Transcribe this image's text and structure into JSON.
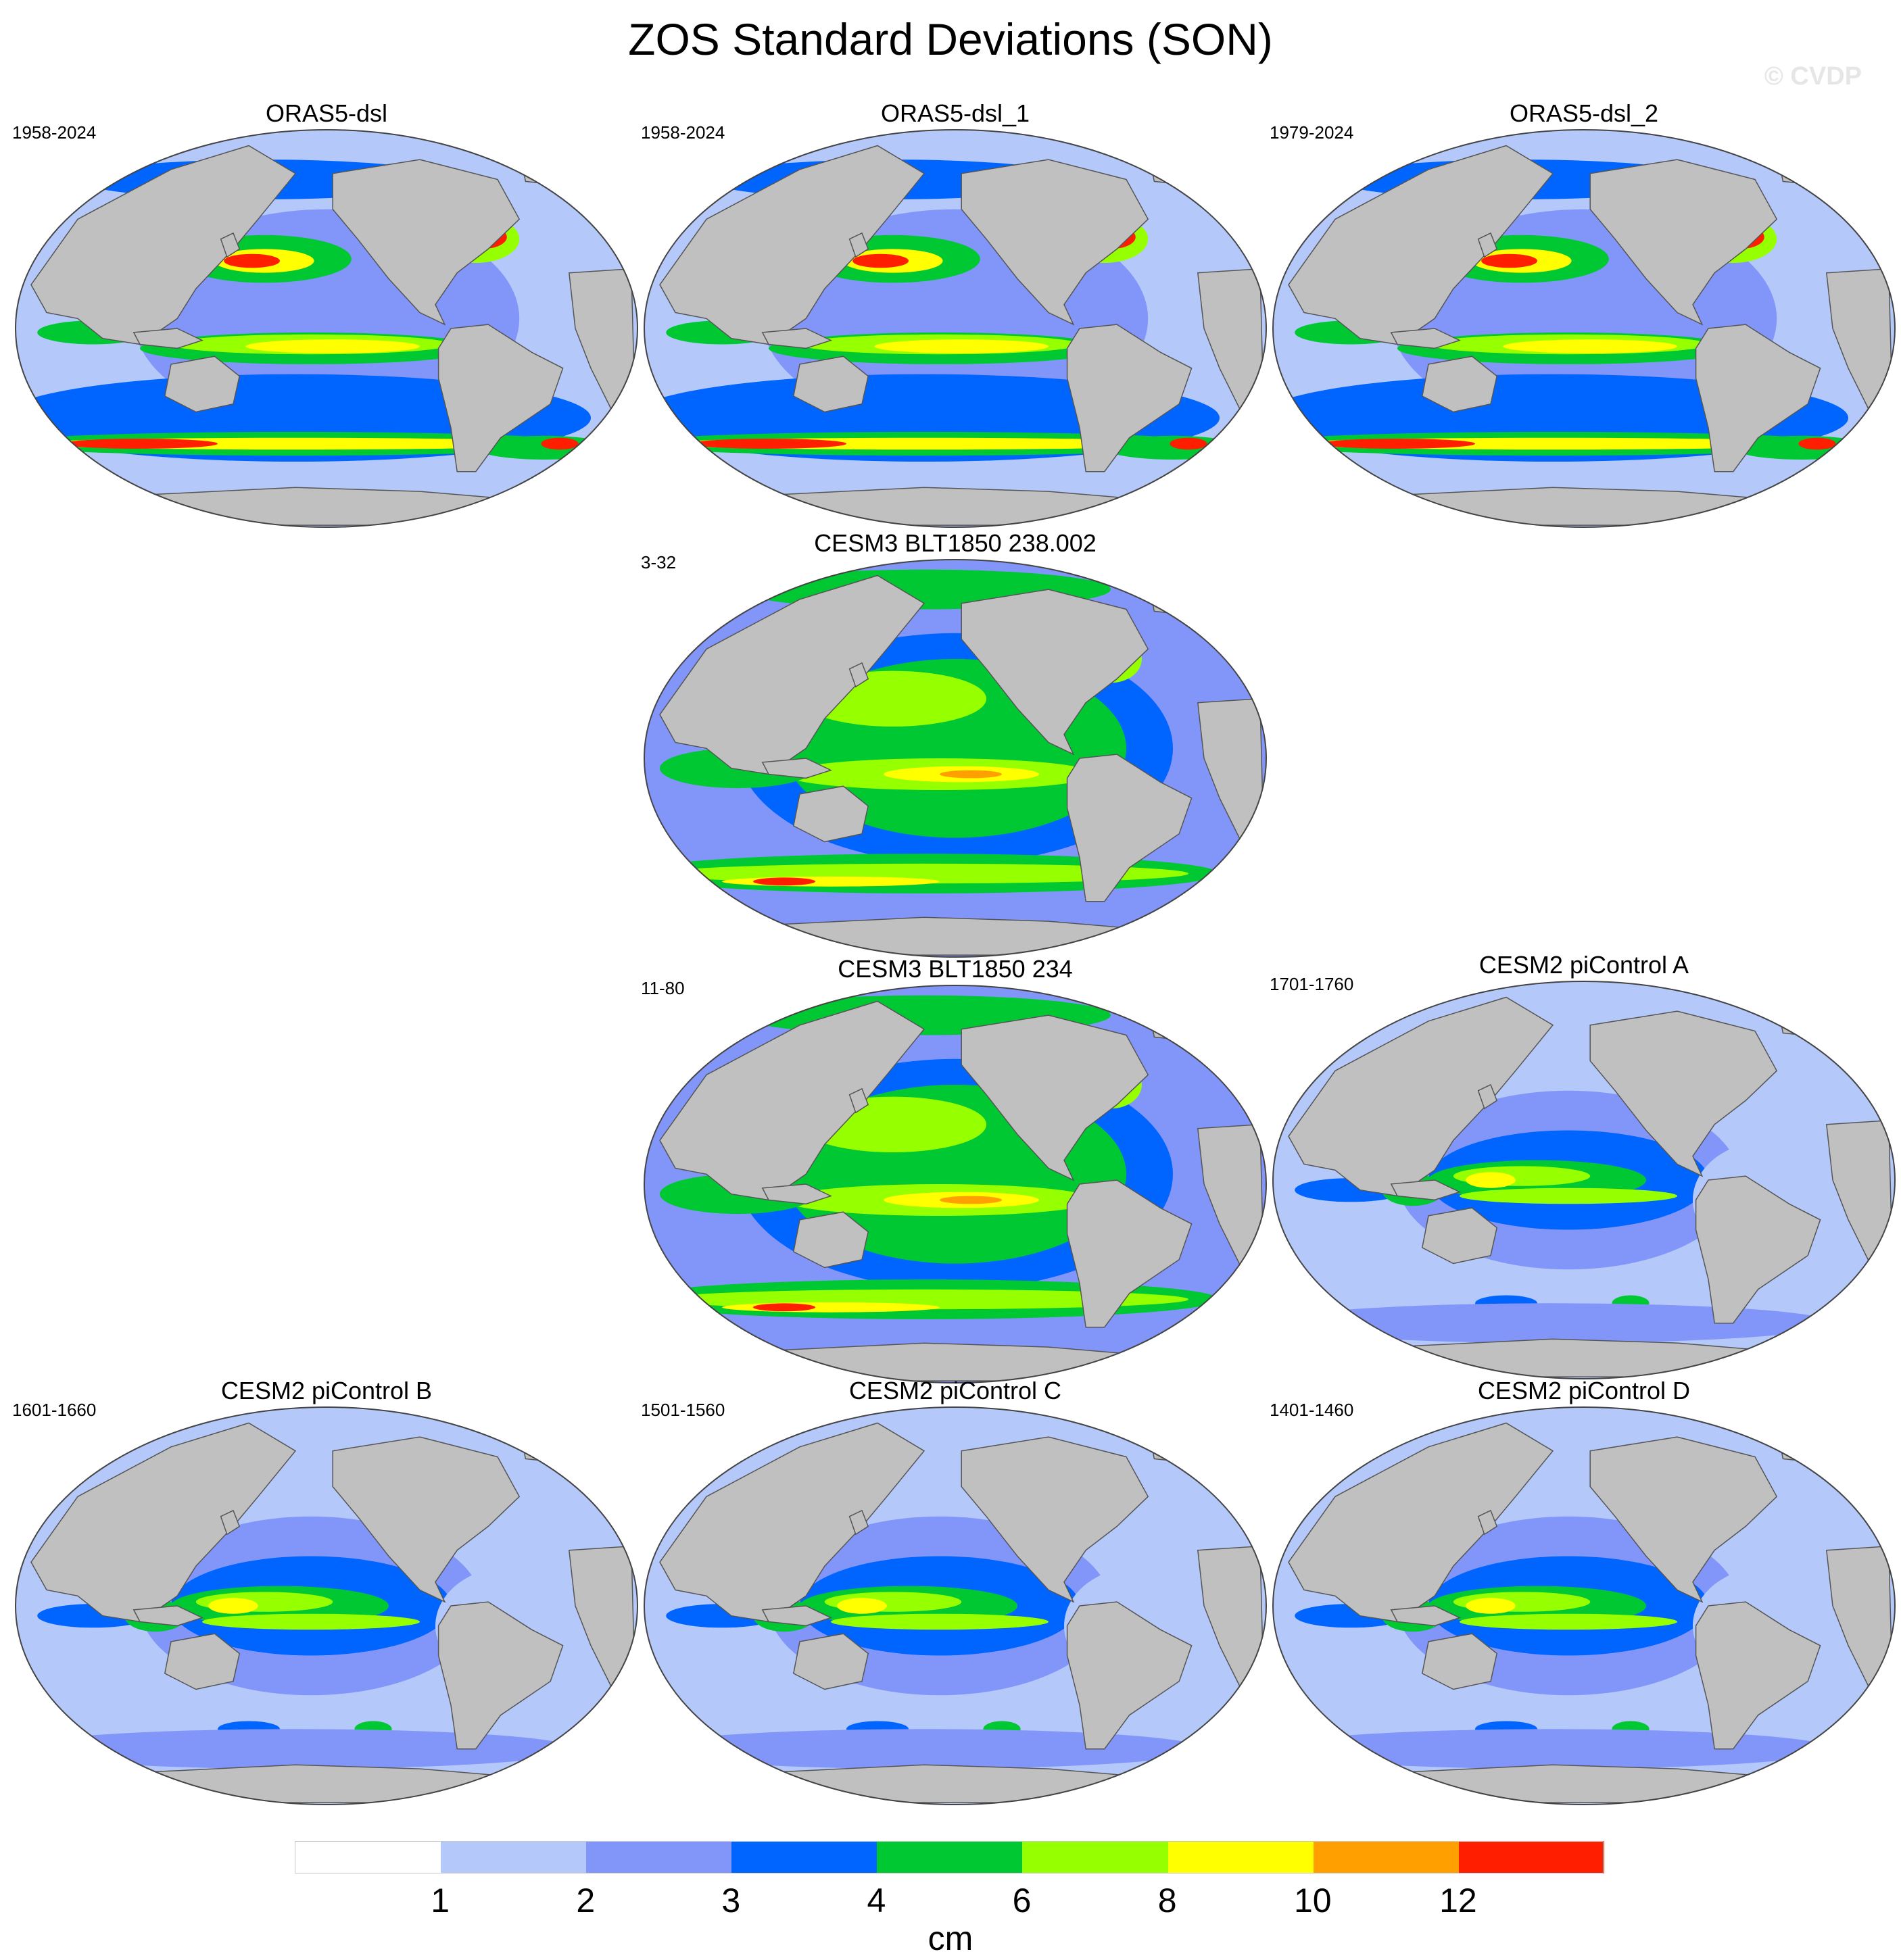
{
  "title": "ZOS Standard Deviations (SON)",
  "watermark": "© CVDP",
  "panels": [
    {
      "title": "ORAS5-dsl",
      "period": "1958-2024",
      "pattern": "reanalysis"
    },
    {
      "title": "ORAS5-dsl_1",
      "period": "1958-2024",
      "pattern": "reanalysis"
    },
    {
      "title": "ORAS5-dsl_2",
      "period": "1979-2024",
      "pattern": "reanalysis"
    },
    {
      "title": "CESM3 BLT1850 238.002",
      "period": "3-32",
      "pattern": "cesm3"
    },
    {
      "title": "CESM3 BLT1850 234",
      "period": "11-80",
      "pattern": "cesm3"
    },
    {
      "title": "CESM2 piControl A",
      "period": "1701-1760",
      "pattern": "cesm2"
    },
    {
      "title": "CESM2 piControl B",
      "period": "1601-1660",
      "pattern": "cesm2"
    },
    {
      "title": "CESM2 piControl C",
      "period": "1501-1560",
      "pattern": "cesm2"
    },
    {
      "title": "CESM2 piControl D",
      "period": "1401-1460",
      "pattern": "cesm2"
    }
  ],
  "colorbar": {
    "unit": "cm",
    "levels": [
      1,
      2,
      3,
      4,
      6,
      8,
      10,
      12
    ],
    "colors": [
      "#ffffff",
      "#b4c8fa",
      "#8296fa",
      "#0064ff",
      "#00c832",
      "#96ff00",
      "#ffff00",
      "#ffa000",
      "#ff1e00"
    ]
  },
  "map_colors": {
    "land": "#c0c0c0",
    "coast": "#555555"
  }
}
